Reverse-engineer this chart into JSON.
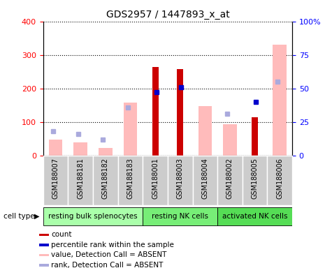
{
  "title": "GDS2957 / 1447893_x_at",
  "samples": [
    "GSM188007",
    "GSM188181",
    "GSM188182",
    "GSM188183",
    "GSM188001",
    "GSM188003",
    "GSM188004",
    "GSM188002",
    "GSM188005",
    "GSM188006"
  ],
  "groups": [
    {
      "label": "resting bulk splenocytes",
      "color": "#aaffaa",
      "start": 0,
      "end": 4
    },
    {
      "label": "resting NK cells",
      "color": "#77ee77",
      "start": 4,
      "end": 7
    },
    {
      "label": "activated NK cells",
      "color": "#55dd55",
      "start": 7,
      "end": 10
    }
  ],
  "count": [
    null,
    null,
    null,
    null,
    265,
    258,
    null,
    null,
    115,
    null
  ],
  "percentile_rank": [
    null,
    null,
    null,
    null,
    47,
    51,
    null,
    null,
    40,
    null
  ],
  "value_absent": [
    48,
    38,
    22,
    158,
    null,
    null,
    148,
    93,
    null,
    330
  ],
  "rank_absent": [
    18,
    16,
    12,
    36,
    null,
    null,
    null,
    31,
    null,
    55
  ],
  "ylim_left": [
    0,
    400
  ],
  "ylim_right": [
    0,
    100
  ],
  "yticks_left": [
    0,
    100,
    200,
    300,
    400
  ],
  "yticks_right": [
    0,
    25,
    50,
    75,
    100
  ],
  "ytick_labels_right": [
    "0",
    "25",
    "50",
    "75",
    "100%"
  ],
  "color_count": "#cc0000",
  "color_percentile": "#0000cc",
  "color_value_absent": "#ffbbbb",
  "color_rank_absent": "#aaaadd",
  "background_sample": "#cccccc",
  "cell_type_label": "cell type"
}
